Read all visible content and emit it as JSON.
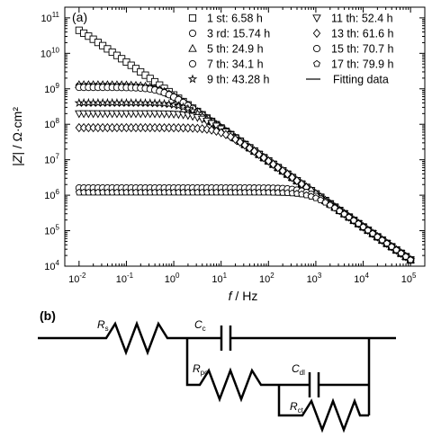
{
  "panel_a_label": "(a)",
  "panel_b_label": "(b)",
  "chart_data": {
    "type": "scatter",
    "xlabel_var": "f",
    "xlabel_unit": " / Hz",
    "ylabel_var": "|Z|",
    "ylabel_unit": " / Ω·cm²",
    "x_scale": "log",
    "y_scale": "log",
    "xlim": [
      0.005,
      200000
    ],
    "ylim": [
      10000,
      200000000000
    ],
    "x_ticks": [
      0.01,
      0.1,
      1,
      10,
      100,
      1000,
      10000,
      100000
    ],
    "x_tick_labels": [
      [
        "10",
        "-2"
      ],
      [
        "10",
        "-1"
      ],
      [
        "10",
        "0"
      ],
      [
        "10",
        "1"
      ],
      [
        "10",
        "2"
      ],
      [
        "10",
        "3"
      ],
      [
        "10",
        "4"
      ],
      [
        "10",
        "5"
      ]
    ],
    "y_ticks": [
      10000,
      100000,
      1000000,
      10000000,
      100000000,
      1000000000,
      10000000000,
      100000000000
    ],
    "y_tick_labels": [
      [
        "10",
        "4"
      ],
      [
        "10",
        "5"
      ],
      [
        "10",
        "6"
      ],
      [
        "10",
        "7"
      ],
      [
        "10",
        "8"
      ],
      [
        "10",
        "9"
      ],
      [
        "10",
        "10"
      ],
      [
        "10",
        "11"
      ]
    ],
    "legend_position": "top-right",
    "grid": false,
    "series": [
      {
        "name": "1 st: 6.58 h",
        "marker": "square",
        "plateau": 100000000000,
        "fc": 0.01
      },
      {
        "name": "3 rd: 15.74 h",
        "marker": "circle",
        "plateau": 1200000000,
        "fc": 1.2
      },
      {
        "name": "5 th: 24.9 h",
        "marker": "triangle",
        "plateau": 1300000000,
        "fc": 1.2
      },
      {
        "name": "7 th: 34.1 h",
        "marker": "circle",
        "plateau": 1100000000,
        "fc": 1.4
      },
      {
        "name": "9 th: 43.28 h",
        "marker": "star",
        "plateau": 400000000,
        "fc": 3
      },
      {
        "name": "11 th: 52.4 h",
        "marker": "tri-down",
        "plateau": 200000000,
        "fc": 6
      },
      {
        "name": "13 th: 61.6 h",
        "marker": "diamond",
        "plateau": 80000000,
        "fc": 12
      },
      {
        "name": "15 th: 70.7 h",
        "marker": "circle",
        "plateau": 1600000,
        "fc": 800
      },
      {
        "name": "17 th: 79.9 h",
        "marker": "pentagon",
        "plateau": 1200000,
        "fc": 1000
      }
    ],
    "fit_label": "Fitting data",
    "hf_asymptote": {
      "f": 100000,
      "z": 15000
    }
  },
  "circuit": {
    "labels": [
      {
        "main": "R",
        "sub": "s"
      },
      {
        "main": "C",
        "sub": "c"
      },
      {
        "main": "R",
        "sub": "po"
      },
      {
        "main": "C",
        "sub": "dl"
      },
      {
        "main": "R",
        "sub": "ct"
      }
    ]
  }
}
